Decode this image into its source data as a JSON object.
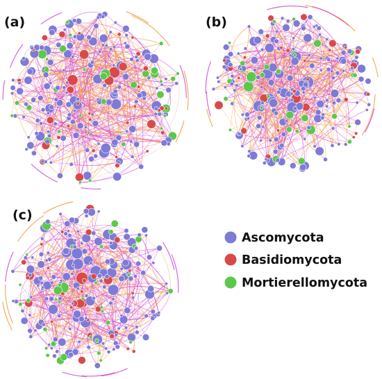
{
  "panels": [
    {
      "label": "(a)",
      "seed": 11
    },
    {
      "label": "(b)",
      "seed": 29
    },
    {
      "label": "(c)",
      "seed": 47
    }
  ],
  "legend": [
    {
      "label": "Ascomycota",
      "color": "#7e7ad6"
    },
    {
      "label": "Basidiomycota",
      "color": "#d84a4a"
    },
    {
      "label": "Mortierellomycota",
      "color": "#5cc84a"
    }
  ],
  "edge_colors": {
    "positive": "#cf3fd8",
    "negative": "#f29a3a"
  }
}
